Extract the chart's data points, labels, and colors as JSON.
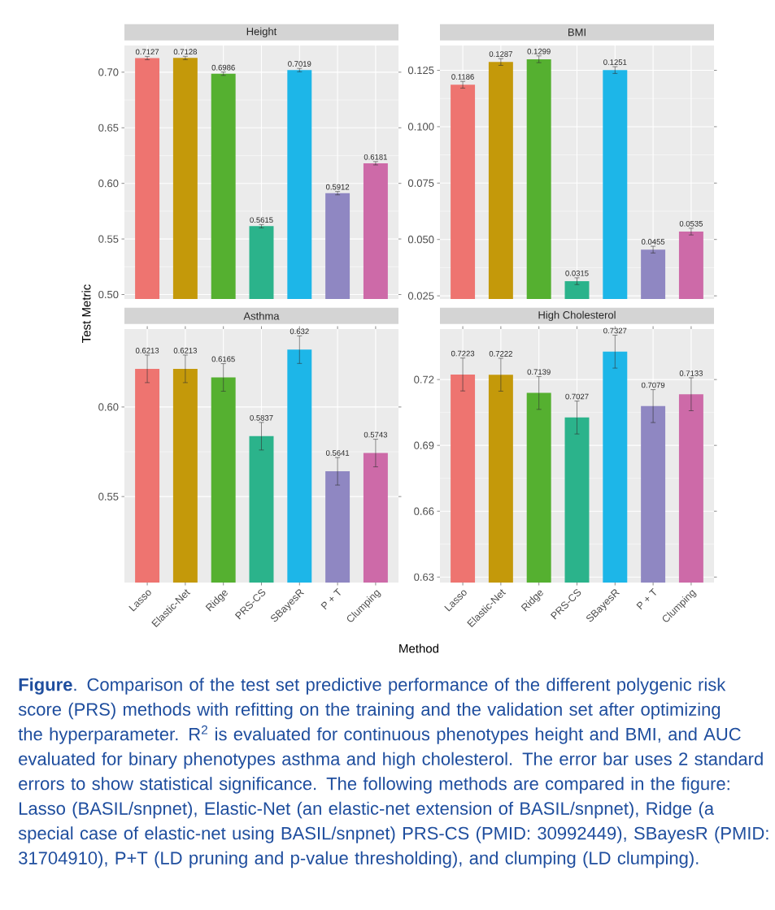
{
  "chart_data": [
    {
      "type": "bar",
      "title": "Height",
      "ylabel": "Test Metric",
      "categories": [
        null,
        null,
        null,
        null,
        null,
        null,
        null
      ],
      "values": [
        0.7127,
        0.7128,
        0.6986,
        0.5615,
        0.7019,
        0.5912,
        0.6181
      ],
      "errors": [
        0.0015,
        0.0015,
        0.0015,
        0.0015,
        0.0015,
        0.0015,
        0.0015
      ],
      "colors": [
        "#ee7470",
        "#c4990a",
        "#55b030",
        "#2bb38b",
        "#1db6e8",
        "#8f87c2",
        "#cd6aa8"
      ],
      "ylim": [
        0.496,
        0.724
      ],
      "yticks": [
        {
          "value": 0.5,
          "label": "0.50"
        },
        {
          "value": 0.55,
          "label": "0.55"
        },
        {
          "value": 0.6,
          "label": "0.60"
        },
        {
          "value": 0.65,
          "label": "0.65"
        },
        {
          "value": 0.7,
          "label": "0.70"
        }
      ],
      "data_labels": true,
      "grid": true,
      "tick_labels": "y",
      "annotations": [
        "**Figure**. Comparison of the test set predictive performance of the different polygenic risk score (PRS) methods with refitting on the training and the validation set after optimizing the hyperparameter.  R$^{2}$ is evaluated for continuous phenotypes height and BMI, and AUC evaluated for binary phenotypes asthma and high cholesterol. The error bar uses 2 standard errors to show statistical significance. The following methods are compared in the figure: Lasso (BASIL/snpnet), Elastic-Net (an elastic-net extension of BASIL/snpnet), Ridge (a special case of elastic-net using BASIL/snpnet) PRS-CS  (PMID: 30992449), SBayesR (PMID: 31704910), P+T (LD pruning and p-value thresholding), and clumping (LD clumping)."
      ]
    },
    {
      "type": "bar",
      "title": "BMI",
      "categories": [
        null,
        null,
        null,
        null,
        null,
        null,
        null
      ],
      "values": [
        0.1186,
        0.1287,
        0.1299,
        0.0315,
        0.1251,
        0.0455,
        0.0535
      ],
      "errors": [
        0.0015,
        0.0015,
        0.0015,
        0.0015,
        0.0015,
        0.0015,
        0.0015
      ],
      "colors": [
        "#ee7470",
        "#c4990a",
        "#55b030",
        "#2bb38b",
        "#1db6e8",
        "#8f87c2",
        "#cd6aa8"
      ],
      "ylim": [
        0.0236,
        0.136
      ],
      "yticks": [
        {
          "value": 0.025,
          "label": "0.025"
        },
        {
          "value": 0.05,
          "label": "0.050"
        },
        {
          "value": 0.075,
          "label": "0.075"
        },
        {
          "value": 0.1,
          "label": "0.100"
        },
        {
          "value": 0.125,
          "label": "0.125"
        }
      ],
      "data_labels": true,
      "grid": true,
      "tick_labels": "y"
    },
    {
      "type": "bar",
      "title": "Asthma",
      "xlabel": "Method",
      "categories": [
        "Lasso",
        "Elastic-Net",
        "Ridge",
        "PRS-CS",
        "SBayesR",
        "P + T",
        "Clumping"
      ],
      "values": [
        0.6213,
        0.6213,
        0.6165,
        0.5837,
        0.632,
        0.5641,
        0.5743
      ],
      "errors": [
        0.0077,
        0.0077,
        0.0077,
        0.0077,
        0.0077,
        0.0077,
        0.0077
      ],
      "colors": [
        "#ee7470",
        "#c4990a",
        "#55b030",
        "#2bb38b",
        "#1db6e8",
        "#8f87c2",
        "#cd6aa8"
      ],
      "ylim": [
        0.502,
        0.6435
      ],
      "yticks": [
        {
          "value": 0.55,
          "label": "0.55"
        },
        {
          "value": 0.6,
          "label": "0.60"
        }
      ],
      "data_labels": true,
      "grid": true
    },
    {
      "type": "bar",
      "title": "High Cholesterol",
      "categories": [
        "Lasso",
        "Elastic-Net",
        "Ridge",
        "PRS-CS",
        "SBayesR",
        "P + T",
        "Clumping"
      ],
      "values": [
        0.7223,
        0.7222,
        0.7139,
        0.7027,
        0.7327,
        0.7079,
        0.7133
      ],
      "errors": [
        0.0075,
        0.0075,
        0.0075,
        0.0075,
        0.0075,
        0.0075,
        0.0075
      ],
      "colors": [
        "#ee7470",
        "#c4990a",
        "#55b030",
        "#2bb38b",
        "#1db6e8",
        "#8f87c2",
        "#cd6aa8"
      ],
      "ylim": [
        0.6275,
        0.743
      ],
      "yticks": [
        {
          "value": 0.63,
          "label": "0.63"
        },
        {
          "value": 0.66,
          "label": "0.66"
        },
        {
          "value": 0.69,
          "label": "0.69"
        },
        {
          "value": 0.72,
          "label": "0.72"
        }
      ],
      "data_labels": true,
      "grid": true
    }
  ]
}
